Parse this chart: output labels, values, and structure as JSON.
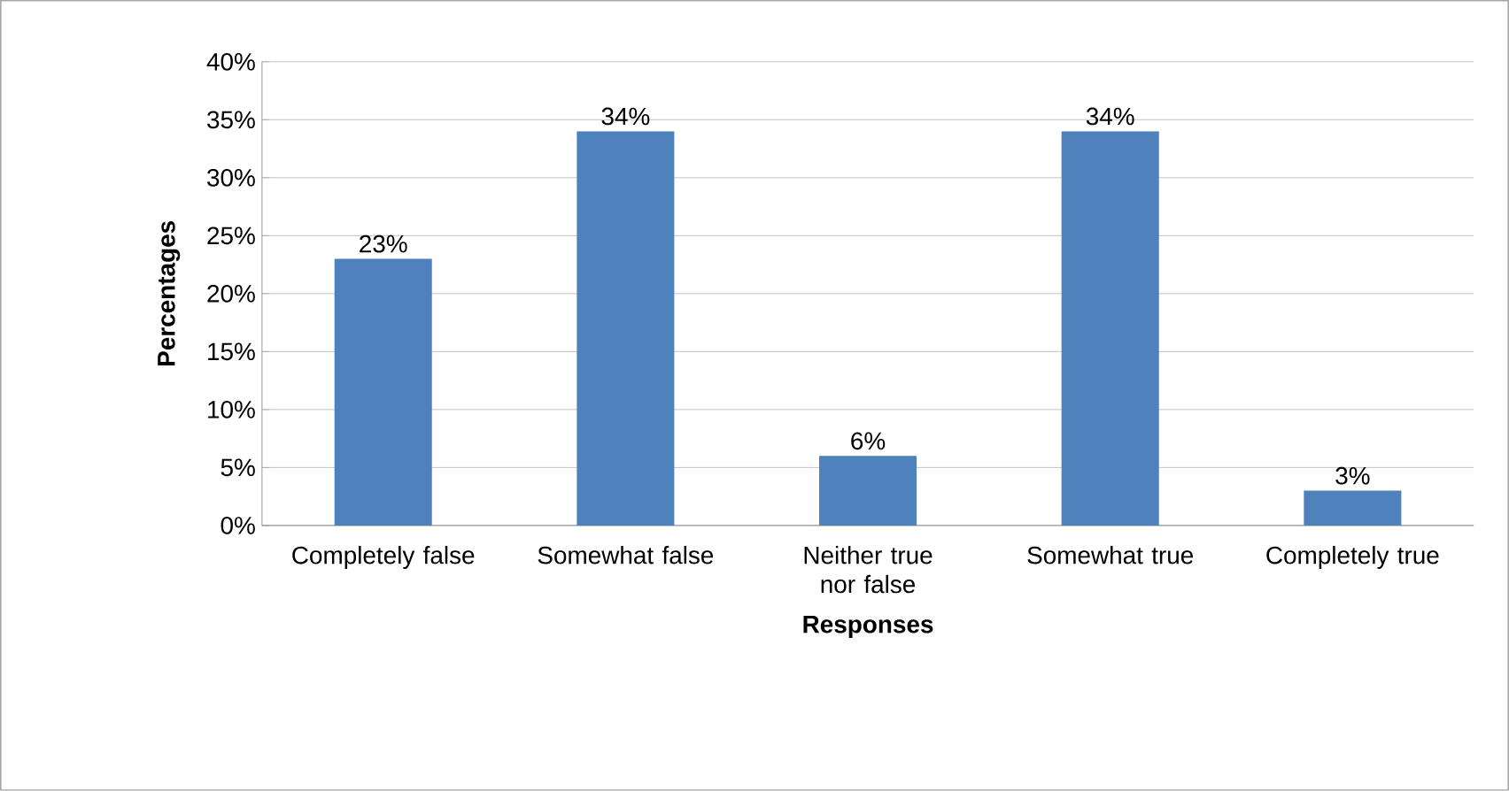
{
  "chart_data": {
    "type": "bar",
    "xlabel": "Responses",
    "ylabel": "Percentages",
    "categories": [
      "Completely false",
      "Somewhat false",
      "Neither true nor false",
      "Somewhat true",
      "Completely true"
    ],
    "values": [
      23,
      34,
      6,
      34,
      3
    ],
    "value_labels": [
      "23%",
      "34%",
      "6%",
      "34%",
      "3%"
    ],
    "color": "#4f81bd",
    "ylim": [
      0,
      40
    ],
    "yticks": [
      {
        "value": 0,
        "label": "0%"
      },
      {
        "value": 5,
        "label": "5%"
      },
      {
        "value": 10,
        "label": "10%"
      },
      {
        "value": 15,
        "label": "15%"
      },
      {
        "value": 20,
        "label": "20%"
      },
      {
        "value": 25,
        "label": "25%"
      },
      {
        "value": 30,
        "label": "30%"
      },
      {
        "value": 35,
        "label": "35%"
      },
      {
        "value": 40,
        "label": "40%"
      }
    ],
    "grid": "y"
  }
}
